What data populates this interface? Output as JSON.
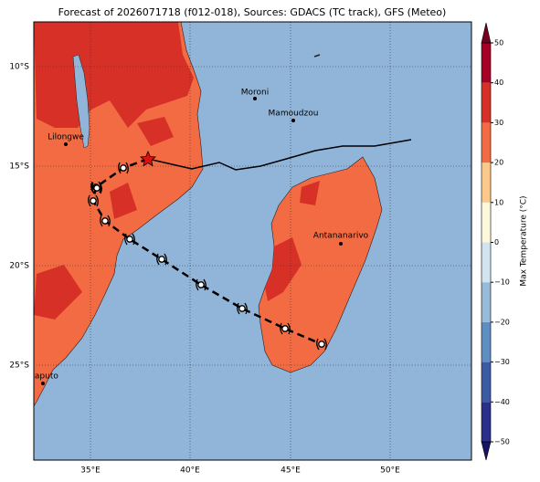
{
  "title": "Forecast of 2026071718 (f012-018), Sources: GDACS (TC track), GFS (Meteo)",
  "map": {
    "lat_labels": [
      "10°S",
      "15°S",
      "20°S",
      "25°S"
    ],
    "lon_labels": [
      "35°E",
      "40°E",
      "45°E",
      "50°E"
    ],
    "cities": [
      {
        "name": "Moroni"
      },
      {
        "name": "Mamoudzou"
      },
      {
        "name": "Lilongwe"
      },
      {
        "name": "Antananarivo"
      },
      {
        "name": "Maputo"
      }
    ]
  },
  "colorbar": {
    "label": "Max Temperature (°C)",
    "lim": [
      -50,
      50
    ],
    "ticks": [
      {
        "value": -50,
        "label": "−50"
      },
      {
        "value": -40,
        "label": "−40"
      },
      {
        "value": -30,
        "label": "−30"
      },
      {
        "value": -20,
        "label": "−20"
      },
      {
        "value": -10,
        "label": "−10"
      },
      0,
      10,
      20,
      30,
      40,
      50
    ],
    "colors": [
      "#2a2f8c",
      "#3b5ba5",
      "#5f8fc2",
      "#97bbd9",
      "#d2e4f0",
      "#fdf8dc",
      "#fcc98a",
      "#f26b43",
      "#d73027",
      "#a50026"
    ],
    "extend_colors": [
      "#161468",
      "#78001f"
    ]
  }
}
